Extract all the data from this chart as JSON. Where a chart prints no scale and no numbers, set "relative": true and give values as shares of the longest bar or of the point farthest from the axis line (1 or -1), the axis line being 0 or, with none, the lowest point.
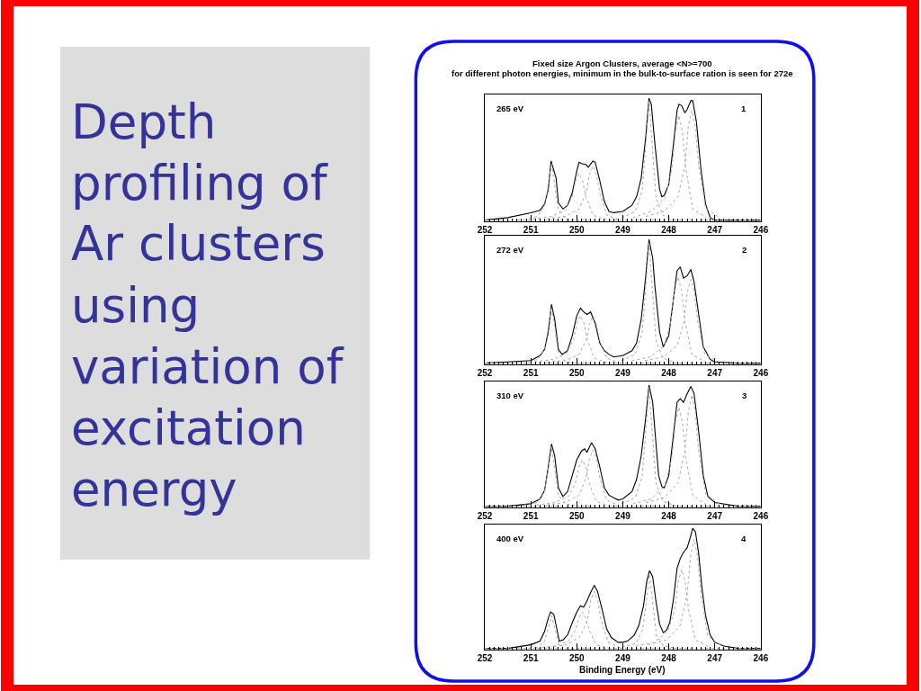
{
  "chart_data": [
    {
      "type": "other",
      "title": "Depth profiling of Ar clusters using variation of excitation energy"
    },
    {
      "type": "line",
      "relative": true,
      "title": "Fixed size Argon Clusters, average <N>=700",
      "subtitle": "for different photon energies, minimum in the bulk-to-surface ration is seen for 272e",
      "xlim": [
        252,
        246
      ],
      "xticks": [
        252,
        {
          "value": 251.9,
          "label": null
        },
        {
          "value": 251.8,
          "label": null
        },
        {
          "value": 251.7,
          "label": null
        },
        {
          "value": 251.6,
          "label": null
        },
        {
          "value": 251.5,
          "label": null
        },
        {
          "value": 251.4,
          "label": null
        },
        {
          "value": 251.3,
          "label": null
        },
        {
          "value": 251.2,
          "label": null
        },
        {
          "value": 251.1,
          "label": null
        },
        251,
        {
          "value": 250.9,
          "label": null
        },
        {
          "value": 250.8,
          "label": null
        },
        {
          "value": 250.7,
          "label": null
        },
        {
          "value": 250.6,
          "label": null
        },
        {
          "value": 250.5,
          "label": null
        },
        {
          "value": 250.4,
          "label": null
        },
        {
          "value": 250.3,
          "label": null
        },
        {
          "value": 250.2,
          "label": null
        },
        {
          "value": 250.1,
          "label": null
        },
        250,
        {
          "value": 249.9,
          "label": null
        },
        {
          "value": 249.8,
          "label": null
        },
        {
          "value": 249.7,
          "label": null
        },
        {
          "value": 249.6,
          "label": null
        },
        {
          "value": 249.5,
          "label": null
        },
        {
          "value": 249.4,
          "label": null
        },
        {
          "value": 249.3,
          "label": null
        },
        {
          "value": 249.2,
          "label": null
        },
        {
          "value": 249.1,
          "label": null
        },
        249,
        {
          "value": 248.9,
          "label": null
        },
        {
          "value": 248.8,
          "label": null
        },
        {
          "value": 248.7,
          "label": null
        },
        {
          "value": 248.6,
          "label": null
        },
        {
          "value": 248.5,
          "label": null
        },
        {
          "value": 248.4,
          "label": null
        },
        {
          "value": 248.3,
          "label": null
        },
        {
          "value": 248.2,
          "label": null
        },
        {
          "value": 248.1,
          "label": null
        },
        248,
        {
          "value": 247.9,
          "label": null
        },
        {
          "value": 247.8,
          "label": null
        },
        {
          "value": 247.7,
          "label": null
        },
        {
          "value": 247.6,
          "label": null
        },
        {
          "value": 247.5,
          "label": null
        },
        {
          "value": 247.4,
          "label": null
        },
        {
          "value": 247.3,
          "label": null
        },
        {
          "value": 247.2,
          "label": null
        },
        {
          "value": 247.1,
          "label": null
        },
        247,
        {
          "value": 246.9,
          "label": null
        },
        {
          "value": 246.8,
          "label": null
        },
        {
          "value": 246.7,
          "label": null
        },
        {
          "value": 246.6,
          "label": null
        },
        {
          "value": 246.5,
          "label": null
        },
        {
          "value": 246.4,
          "label": null
        },
        {
          "value": 246.3,
          "label": null
        },
        {
          "value": 246.2,
          "label": null
        },
        {
          "value": 246.1,
          "label": null
        },
        246
      ],
      "tick_labels": "x",
      "annotations": [
        "265 eV",
        "1"
      ],
      "series": [
        {
          "color": "#000000",
          "x": [
            252,
            251.5,
            251.0,
            250.8,
            250.7,
            250.62,
            250.56,
            250.45,
            250.4,
            250.3,
            250.2,
            250.1,
            250.0,
            249.95,
            249.9,
            249.8,
            249.75,
            249.65,
            249.6,
            249.5,
            249.4,
            249.3,
            249.2,
            249.0,
            248.8,
            248.7,
            248.6,
            248.5,
            248.43,
            248.38,
            248.3,
            248.2,
            248.15,
            248.1,
            248.0,
            247.9,
            247.82,
            247.78,
            247.72,
            247.65,
            247.6,
            247.52,
            247.48,
            247.4,
            247.3,
            247.2,
            247.1,
            247.0,
            246.5,
            246.0
          ],
          "values": [
            0.01,
            0.03,
            0.07,
            0.09,
            0.14,
            0.26,
            0.49,
            0.35,
            0.15,
            0.1,
            0.13,
            0.23,
            0.41,
            0.48,
            0.47,
            0.46,
            0.44,
            0.49,
            0.48,
            0.33,
            0.16,
            0.08,
            0.07,
            0.08,
            0.13,
            0.2,
            0.35,
            0.69,
            1.0,
            0.95,
            0.62,
            0.26,
            0.2,
            0.21,
            0.3,
            0.62,
            0.9,
            0.95,
            0.94,
            0.88,
            0.91,
            0.98,
            0.98,
            0.81,
            0.42,
            0.14,
            0.03,
            0.01,
            0.01,
            0.01
          ]
        },
        {
          "color": "#aaaaaa",
          "line_style": "dotted",
          "x": [
            252,
            246
          ],
          "values": [
            0.01,
            0.01
          ]
        },
        {
          "color": "#aaaaaa",
          "line_style": "dotted",
          "x": [
            251.15,
            250.85,
            250.7,
            250.625,
            250.55,
            250.475,
            250.4,
            250.25,
            249.95
          ],
          "values": [
            0.01,
            0.04,
            0.12,
            0.28,
            0.47,
            0.28,
            0.09,
            0.02,
            0.01
          ]
        },
        {
          "color": "#aaaaaa",
          "line_style": "dotted",
          "x": [
            250.95,
            250.55,
            250.25,
            250.1,
            250.025,
            249.95,
            249.875,
            249.8,
            249.65,
            249.35
          ],
          "values": [
            0.02,
            0.04,
            0.09,
            0.2,
            0.33,
            0.39,
            0.33,
            0.2,
            0.05,
            0.01
          ]
        },
        {
          "color": "#aaaaaa",
          "line_style": "dotted",
          "x": [
            250.65,
            250.25,
            249.95,
            249.8,
            249.725,
            249.65,
            249.575,
            249.5,
            249.35,
            249.05
          ],
          "values": [
            0.02,
            0.04,
            0.1,
            0.23,
            0.38,
            0.45,
            0.38,
            0.23,
            0.05,
            0.01
          ]
        },
        {
          "color": "#aaaaaa",
          "line_style": "dotted",
          "x": [
            249.03,
            248.73,
            248.58,
            248.505,
            248.43,
            248.355,
            248.28,
            248.13,
            247.83
          ],
          "values": [
            0.03,
            0.08,
            0.25,
            0.59,
            0.98,
            0.59,
            0.2,
            0.05,
            0.01
          ]
        },
        {
          "color": "#aaaaaa",
          "line_style": "dotted",
          "x": [
            248.78,
            248.38,
            248.08,
            247.93,
            247.855,
            247.78,
            247.705,
            247.63,
            247.48,
            247.18
          ],
          "values": [
            0.03,
            0.08,
            0.19,
            0.43,
            0.73,
            0.86,
            0.73,
            0.43,
            0.1,
            0.03
          ]
        },
        {
          "color": "#aaaaaa",
          "line_style": "dotted",
          "x": [
            248.5,
            248.1,
            247.8,
            247.65,
            247.575,
            247.5,
            247.425,
            247.35,
            247.2,
            246.9
          ],
          "values": [
            0.04,
            0.08,
            0.2,
            0.45,
            0.77,
            0.9,
            0.77,
            0.45,
            0.11,
            0.03
          ]
        }
      ]
    },
    {
      "type": "line",
      "relative": true,
      "xlim": [
        252,
        246
      ],
      "xticks": [
        252,
        {
          "value": 251.9,
          "label": null
        },
        {
          "value": 251.8,
          "label": null
        },
        {
          "value": 251.7,
          "label": null
        },
        {
          "value": 251.6,
          "label": null
        },
        {
          "value": 251.5,
          "label": null
        },
        {
          "value": 251.4,
          "label": null
        },
        {
          "value": 251.3,
          "label": null
        },
        {
          "value": 251.2,
          "label": null
        },
        {
          "value": 251.1,
          "label": null
        },
        251,
        {
          "value": 250.9,
          "label": null
        },
        {
          "value": 250.8,
          "label": null
        },
        {
          "value": 250.7,
          "label": null
        },
        {
          "value": 250.6,
          "label": null
        },
        {
          "value": 250.5,
          "label": null
        },
        {
          "value": 250.4,
          "label": null
        },
        {
          "value": 250.3,
          "label": null
        },
        {
          "value": 250.2,
          "label": null
        },
        {
          "value": 250.1,
          "label": null
        },
        250,
        {
          "value": 249.9,
          "label": null
        },
        {
          "value": 249.8,
          "label": null
        },
        {
          "value": 249.7,
          "label": null
        },
        {
          "value": 249.6,
          "label": null
        },
        {
          "value": 249.5,
          "label": null
        },
        {
          "value": 249.4,
          "label": null
        },
        {
          "value": 249.3,
          "label": null
        },
        {
          "value": 249.2,
          "label": null
        },
        {
          "value": 249.1,
          "label": null
        },
        249,
        {
          "value": 248.9,
          "label": null
        },
        {
          "value": 248.8,
          "label": null
        },
        {
          "value": 248.7,
          "label": null
        },
        {
          "value": 248.6,
          "label": null
        },
        {
          "value": 248.5,
          "label": null
        },
        {
          "value": 248.4,
          "label": null
        },
        {
          "value": 248.3,
          "label": null
        },
        {
          "value": 248.2,
          "label": null
        },
        {
          "value": 248.1,
          "label": null
        },
        248,
        {
          "value": 247.9,
          "label": null
        },
        {
          "value": 247.8,
          "label": null
        },
        {
          "value": 247.7,
          "label": null
        },
        {
          "value": 247.6,
          "label": null
        },
        {
          "value": 247.5,
          "label": null
        },
        {
          "value": 247.4,
          "label": null
        },
        {
          "value": 247.3,
          "label": null
        },
        {
          "value": 247.2,
          "label": null
        },
        {
          "value": 247.1,
          "label": null
        },
        247,
        {
          "value": 246.9,
          "label": null
        },
        {
          "value": 246.8,
          "label": null
        },
        {
          "value": 246.7,
          "label": null
        },
        {
          "value": 246.6,
          "label": null
        },
        {
          "value": 246.5,
          "label": null
        },
        {
          "value": 246.4,
          "label": null
        },
        {
          "value": 246.3,
          "label": null
        },
        {
          "value": 246.2,
          "label": null
        },
        {
          "value": 246.1,
          "label": null
        },
        246
      ],
      "tick_labels": "x",
      "annotations": [
        "272 eV",
        "2"
      ],
      "series": [
        {
          "color": "#000000",
          "x": [
            252,
            251.5,
            251.0,
            250.8,
            250.7,
            250.62,
            250.55,
            250.48,
            250.4,
            250.32,
            250.2,
            250.1,
            250.0,
            249.92,
            249.85,
            249.78,
            249.7,
            249.6,
            249.5,
            249.4,
            249.3,
            249.2,
            249.0,
            248.8,
            248.7,
            248.6,
            248.5,
            248.43,
            248.35,
            248.3,
            248.2,
            248.12,
            248.0,
            247.9,
            247.82,
            247.75,
            247.68,
            247.6,
            247.52,
            247.45,
            247.35,
            247.25,
            247.1,
            247.0,
            246.5,
            246.0
          ],
          "values": [
            0.01,
            0.02,
            0.03,
            0.07,
            0.12,
            0.26,
            0.48,
            0.36,
            0.12,
            0.08,
            0.11,
            0.23,
            0.39,
            0.45,
            0.42,
            0.4,
            0.42,
            0.33,
            0.17,
            0.11,
            0.08,
            0.06,
            0.07,
            0.11,
            0.17,
            0.36,
            0.71,
            1.0,
            0.85,
            0.62,
            0.26,
            0.14,
            0.23,
            0.52,
            0.75,
            0.78,
            0.69,
            0.71,
            0.76,
            0.66,
            0.4,
            0.14,
            0.04,
            0.02,
            0.01,
            0.01
          ]
        },
        {
          "color": "#aaaaaa",
          "line_style": "dotted",
          "x": [
            252,
            246
          ],
          "values": [
            0.01,
            0.01
          ]
        },
        {
          "color": "#aaaaaa",
          "line_style": "dotted",
          "x": [
            251.15,
            250.85,
            250.7,
            250.625,
            250.55,
            250.475,
            250.4,
            250.25,
            249.95
          ],
          "values": [
            0.01,
            0.04,
            0.12,
            0.28,
            0.46,
            0.28,
            0.09,
            0.02,
            0.01
          ]
        },
        {
          "color": "#aaaaaa",
          "line_style": "dotted",
          "x": [
            250.92,
            250.52,
            250.22,
            250.07,
            249.995,
            249.92,
            249.845,
            249.77,
            249.62,
            249.32
          ],
          "values": [
            0.02,
            0.04,
            0.09,
            0.2,
            0.33,
            0.39,
            0.33,
            0.2,
            0.05,
            0.01
          ]
        },
        {
          "color": "#aaaaaa",
          "line_style": "dotted",
          "x": [
            250.65,
            250.25,
            249.95,
            249.8,
            249.725,
            249.65,
            249.575,
            249.5,
            249.35,
            249.05
          ],
          "values": [
            0.02,
            0.03,
            0.08,
            0.19,
            0.32,
            0.38,
            0.32,
            0.19,
            0.05,
            0.01
          ]
        },
        {
          "color": "#aaaaaa",
          "line_style": "dotted",
          "x": [
            249.03,
            248.73,
            248.58,
            248.505,
            248.43,
            248.355,
            248.28,
            248.13,
            247.83
          ],
          "values": [
            0.03,
            0.08,
            0.25,
            0.59,
            0.98,
            0.59,
            0.2,
            0.05,
            0.01
          ]
        },
        {
          "color": "#aaaaaa",
          "line_style": "dotted",
          "x": [
            248.8,
            248.4,
            248.1,
            247.95,
            247.875,
            247.8,
            247.725,
            247.65,
            247.5,
            247.2
          ],
          "values": [
            0.03,
            0.06,
            0.15,
            0.35,
            0.6,
            0.7,
            0.6,
            0.35,
            0.08,
            0.02
          ]
        },
        {
          "color": "#aaaaaa",
          "line_style": "dotted",
          "x": [
            248.52,
            248.12,
            247.82,
            247.67,
            247.595,
            247.52,
            247.445,
            247.37,
            247.22,
            246.92
          ],
          "values": [
            0.03,
            0.06,
            0.15,
            0.34,
            0.58,
            0.68,
            0.58,
            0.34,
            0.08,
            0.02
          ]
        }
      ]
    },
    {
      "type": "line",
      "relative": true,
      "xlim": [
        252,
        246
      ],
      "xticks": [
        252,
        {
          "value": 251.9,
          "label": null
        },
        {
          "value": 251.8,
          "label": null
        },
        {
          "value": 251.7,
          "label": null
        },
        {
          "value": 251.6,
          "label": null
        },
        {
          "value": 251.5,
          "label": null
        },
        {
          "value": 251.4,
          "label": null
        },
        {
          "value": 251.3,
          "label": null
        },
        {
          "value": 251.2,
          "label": null
        },
        {
          "value": 251.1,
          "label": null
        },
        251,
        {
          "value": 250.9,
          "label": null
        },
        {
          "value": 250.8,
          "label": null
        },
        {
          "value": 250.7,
          "label": null
        },
        {
          "value": 250.6,
          "label": null
        },
        {
          "value": 250.5,
          "label": null
        },
        {
          "value": 250.4,
          "label": null
        },
        {
          "value": 250.3,
          "label": null
        },
        {
          "value": 250.2,
          "label": null
        },
        {
          "value": 250.1,
          "label": null
        },
        250,
        {
          "value": 249.9,
          "label": null
        },
        {
          "value": 249.8,
          "label": null
        },
        {
          "value": 249.7,
          "label": null
        },
        {
          "value": 249.6,
          "label": null
        },
        {
          "value": 249.5,
          "label": null
        },
        {
          "value": 249.4,
          "label": null
        },
        {
          "value": 249.3,
          "label": null
        },
        {
          "value": 249.2,
          "label": null
        },
        {
          "value": 249.1,
          "label": null
        },
        249,
        {
          "value": 248.9,
          "label": null
        },
        {
          "value": 248.8,
          "label": null
        },
        {
          "value": 248.7,
          "label": null
        },
        {
          "value": 248.6,
          "label": null
        },
        {
          "value": 248.5,
          "label": null
        },
        {
          "value": 248.4,
          "label": null
        },
        {
          "value": 248.3,
          "label": null
        },
        {
          "value": 248.2,
          "label": null
        },
        {
          "value": 248.1,
          "label": null
        },
        248,
        {
          "value": 247.9,
          "label": null
        },
        {
          "value": 247.8,
          "label": null
        },
        {
          "value": 247.7,
          "label": null
        },
        {
          "value": 247.6,
          "label": null
        },
        {
          "value": 247.5,
          "label": null
        },
        {
          "value": 247.4,
          "label": null
        },
        {
          "value": 247.3,
          "label": null
        },
        {
          "value": 247.2,
          "label": null
        },
        {
          "value": 247.1,
          "label": null
        },
        247,
        {
          "value": 246.9,
          "label": null
        },
        {
          "value": 246.8,
          "label": null
        },
        {
          "value": 246.7,
          "label": null
        },
        {
          "value": 246.6,
          "label": null
        },
        {
          "value": 246.5,
          "label": null
        },
        {
          "value": 246.4,
          "label": null
        },
        {
          "value": 246.3,
          "label": null
        },
        {
          "value": 246.2,
          "label": null
        },
        {
          "value": 246.1,
          "label": null
        },
        246
      ],
      "tick_labels": "x",
      "annotations": [
        "310 eV",
        "3"
      ],
      "series": [
        {
          "color": "#000000",
          "x": [
            252,
            251.5,
            251.0,
            250.8,
            250.7,
            250.62,
            250.55,
            250.48,
            250.4,
            250.3,
            250.2,
            250.1,
            250.0,
            249.9,
            249.83,
            249.78,
            249.68,
            249.6,
            249.5,
            249.4,
            249.3,
            249.1,
            249.0,
            248.8,
            248.7,
            248.6,
            248.5,
            248.43,
            248.35,
            248.3,
            248.22,
            248.15,
            248.1,
            248.0,
            247.9,
            247.82,
            247.75,
            247.68,
            247.6,
            247.52,
            247.45,
            247.35,
            247.25,
            247.15,
            247.0,
            246.5,
            246.0
          ],
          "values": [
            0.01,
            0.01,
            0.03,
            0.07,
            0.14,
            0.33,
            0.52,
            0.42,
            0.16,
            0.09,
            0.13,
            0.26,
            0.39,
            0.46,
            0.48,
            0.45,
            0.53,
            0.48,
            0.33,
            0.16,
            0.1,
            0.06,
            0.07,
            0.13,
            0.23,
            0.42,
            0.74,
            1.0,
            0.86,
            0.62,
            0.26,
            0.17,
            0.16,
            0.26,
            0.59,
            0.86,
            0.89,
            0.86,
            0.93,
            0.99,
            0.93,
            0.62,
            0.26,
            0.09,
            0.04,
            0.01,
            0.01
          ]
        },
        {
          "color": "#aaaaaa",
          "line_style": "dotted",
          "x": [
            252,
            246
          ],
          "values": [
            0.01,
            0.01
          ]
        },
        {
          "color": "#aaaaaa",
          "line_style": "dotted",
          "x": [
            251.15,
            250.85,
            250.7,
            250.625,
            250.55,
            250.475,
            250.4,
            250.25,
            249.95
          ],
          "values": [
            0.02,
            0.04,
            0.13,
            0.3,
            0.5,
            0.3,
            0.1,
            0.03,
            0.01
          ]
        },
        {
          "color": "#aaaaaa",
          "line_style": "dotted",
          "x": [
            250.88,
            250.48,
            250.18,
            250.03,
            249.955,
            249.88,
            249.805,
            249.73,
            249.58,
            249.28
          ],
          "values": [
            0.02,
            0.04,
            0.09,
            0.2,
            0.33,
            0.39,
            0.33,
            0.2,
            0.05,
            0.01
          ]
        },
        {
          "color": "#aaaaaa",
          "line_style": "dotted",
          "x": [
            250.65,
            250.25,
            249.95,
            249.8,
            249.725,
            249.65,
            249.575,
            249.5,
            249.35,
            249.05
          ],
          "values": [
            0.02,
            0.04,
            0.1,
            0.24,
            0.4,
            0.47,
            0.4,
            0.24,
            0.06,
            0.01
          ]
        },
        {
          "color": "#aaaaaa",
          "line_style": "dotted",
          "x": [
            249.03,
            248.73,
            248.58,
            248.505,
            248.43,
            248.355,
            248.28,
            248.13,
            247.83
          ],
          "values": [
            0.03,
            0.08,
            0.25,
            0.59,
            0.98,
            0.59,
            0.2,
            0.05,
            0.01
          ]
        },
        {
          "color": "#aaaaaa",
          "line_style": "dotted",
          "x": [
            248.78,
            248.38,
            248.08,
            247.93,
            247.855,
            247.78,
            247.705,
            247.63,
            247.48,
            247.18
          ],
          "values": [
            0.03,
            0.07,
            0.18,
            0.41,
            0.7,
            0.82,
            0.7,
            0.41,
            0.1,
            0.02
          ]
        },
        {
          "color": "#aaaaaa",
          "line_style": "dotted",
          "x": [
            248.5,
            248.1,
            247.8,
            247.65,
            247.575,
            247.5,
            247.425,
            247.35,
            247.2,
            246.9
          ],
          "values": [
            0.04,
            0.08,
            0.2,
            0.46,
            0.78,
            0.92,
            0.78,
            0.46,
            0.11,
            0.03
          ]
        }
      ]
    },
    {
      "type": "line",
      "relative": true,
      "xlabel": "Binding Energy (eV)",
      "xlim": [
        252,
        246
      ],
      "xticks": [
        252,
        {
          "value": 251.9,
          "label": null
        },
        {
          "value": 251.8,
          "label": null
        },
        {
          "value": 251.7,
          "label": null
        },
        {
          "value": 251.6,
          "label": null
        },
        {
          "value": 251.5,
          "label": null
        },
        {
          "value": 251.4,
          "label": null
        },
        {
          "value": 251.3,
          "label": null
        },
        {
          "value": 251.2,
          "label": null
        },
        {
          "value": 251.1,
          "label": null
        },
        251,
        {
          "value": 250.9,
          "label": null
        },
        {
          "value": 250.8,
          "label": null
        },
        {
          "value": 250.7,
          "label": null
        },
        {
          "value": 250.6,
          "label": null
        },
        {
          "value": 250.5,
          "label": null
        },
        {
          "value": 250.4,
          "label": null
        },
        {
          "value": 250.3,
          "label": null
        },
        {
          "value": 250.2,
          "label": null
        },
        {
          "value": 250.1,
          "label": null
        },
        250,
        {
          "value": 249.9,
          "label": null
        },
        {
          "value": 249.8,
          "label": null
        },
        {
          "value": 249.7,
          "label": null
        },
        {
          "value": 249.6,
          "label": null
        },
        {
          "value": 249.5,
          "label": null
        },
        {
          "value": 249.4,
          "label": null
        },
        {
          "value": 249.3,
          "label": null
        },
        {
          "value": 249.2,
          "label": null
        },
        {
          "value": 249.1,
          "label": null
        },
        249,
        {
          "value": 248.9,
          "label": null
        },
        {
          "value": 248.8,
          "label": null
        },
        {
          "value": 248.7,
          "label": null
        },
        {
          "value": 248.6,
          "label": null
        },
        {
          "value": 248.5,
          "label": null
        },
        {
          "value": 248.4,
          "label": null
        },
        {
          "value": 248.3,
          "label": null
        },
        {
          "value": 248.2,
          "label": null
        },
        {
          "value": 248.1,
          "label": null
        },
        248,
        {
          "value": 247.9,
          "label": null
        },
        {
          "value": 247.8,
          "label": null
        },
        {
          "value": 247.7,
          "label": null
        },
        {
          "value": 247.6,
          "label": null
        },
        {
          "value": 247.5,
          "label": null
        },
        {
          "value": 247.4,
          "label": null
        },
        {
          "value": 247.3,
          "label": null
        },
        {
          "value": 247.2,
          "label": null
        },
        {
          "value": 247.1,
          "label": null
        },
        247,
        {
          "value": 246.9,
          "label": null
        },
        {
          "value": 246.8,
          "label": null
        },
        {
          "value": 246.7,
          "label": null
        },
        {
          "value": 246.6,
          "label": null
        },
        {
          "value": 246.5,
          "label": null
        },
        {
          "value": 246.4,
          "label": null
        },
        {
          "value": 246.3,
          "label": null
        },
        {
          "value": 246.2,
          "label": null
        },
        {
          "value": 246.1,
          "label": null
        },
        246
      ],
      "tick_labels": "x",
      "annotations": [
        "400 eV",
        "4"
      ],
      "series": [
        {
          "color": "#000000",
          "x": [
            252,
            251.5,
            251.0,
            250.8,
            250.7,
            250.62,
            250.57,
            250.5,
            250.45,
            250.38,
            250.3,
            250.2,
            250.1,
            250.0,
            249.92,
            249.85,
            249.78,
            249.7,
            249.62,
            249.55,
            249.45,
            249.35,
            249.25,
            249.1,
            249.0,
            248.9,
            248.75,
            248.65,
            248.55,
            248.48,
            248.42,
            248.35,
            248.28,
            248.2,
            248.12,
            248.05,
            247.98,
            247.9,
            247.82,
            247.75,
            247.68,
            247.6,
            247.55,
            247.48,
            247.42,
            247.35,
            247.28,
            247.2,
            247.1,
            247.0,
            246.8,
            246.5,
            246.0
          ],
          "values": [
            0.01,
            0.01,
            0.04,
            0.07,
            0.15,
            0.26,
            0.31,
            0.29,
            0.2,
            0.07,
            0.08,
            0.12,
            0.22,
            0.31,
            0.36,
            0.35,
            0.4,
            0.47,
            0.53,
            0.48,
            0.33,
            0.17,
            0.1,
            0.06,
            0.06,
            0.07,
            0.12,
            0.2,
            0.36,
            0.56,
            0.65,
            0.6,
            0.4,
            0.21,
            0.14,
            0.16,
            0.22,
            0.41,
            0.67,
            0.75,
            0.8,
            0.84,
            0.9,
            1.0,
            0.97,
            0.79,
            0.51,
            0.28,
            0.12,
            0.06,
            0.03,
            0.01,
            0.01
          ]
        },
        {
          "color": "#aaaaaa",
          "line_style": "dotted",
          "x": [
            252,
            246
          ],
          "values": [
            0.01,
            0.01
          ]
        },
        {
          "color": "#aaaaaa",
          "line_style": "dotted",
          "x": [
            251.15,
            250.85,
            250.7,
            250.625,
            250.55,
            250.475,
            250.4,
            250.25,
            249.95
          ],
          "values": [
            0.01,
            0.02,
            0.07,
            0.17,
            0.28,
            0.17,
            0.06,
            0.01,
            0.0
          ]
        },
        {
          "color": "#aaaaaa",
          "line_style": "dotted",
          "x": [
            250.88,
            250.48,
            250.18,
            250.03,
            249.955,
            249.88,
            249.805,
            249.73,
            249.58,
            249.28
          ],
          "values": [
            0.01,
            0.03,
            0.07,
            0.16,
            0.26,
            0.31,
            0.26,
            0.16,
            0.04,
            0.01
          ]
        },
        {
          "color": "#aaaaaa",
          "line_style": "dotted",
          "x": [
            250.62,
            250.22,
            249.92,
            249.77,
            249.695,
            249.62,
            249.545,
            249.47,
            249.32,
            249.02
          ],
          "values": [
            0.02,
            0.04,
            0.11,
            0.24,
            0.41,
            0.48,
            0.41,
            0.24,
            0.06,
            0.01
          ]
        },
        {
          "color": "#aaaaaa",
          "line_style": "dotted",
          "x": [
            249.02,
            248.72,
            248.57,
            248.495,
            248.42,
            248.345,
            248.27,
            248.12,
            247.82
          ],
          "values": [
            0.02,
            0.05,
            0.16,
            0.37,
            0.62,
            0.37,
            0.12,
            0.03,
            0.01
          ]
        },
        {
          "color": "#aaaaaa",
          "line_style": "dotted",
          "x": [
            248.72,
            248.32,
            248.02,
            247.87,
            247.795,
            247.72,
            247.645,
            247.57,
            247.42,
            247.12
          ],
          "values": [
            0.03,
            0.06,
            0.15,
            0.33,
            0.56,
            0.66,
            0.56,
            0.33,
            0.08,
            0.02
          ]
        },
        {
          "color": "#aaaaaa",
          "line_style": "dotted",
          "x": [
            248.45,
            248.05,
            247.75,
            247.6,
            247.525,
            247.45,
            247.375,
            247.3,
            247.15,
            246.85
          ],
          "values": [
            0.04,
            0.08,
            0.2,
            0.46,
            0.77,
            0.91,
            0.77,
            0.46,
            0.11,
            0.03
          ]
        }
      ]
    }
  ]
}
